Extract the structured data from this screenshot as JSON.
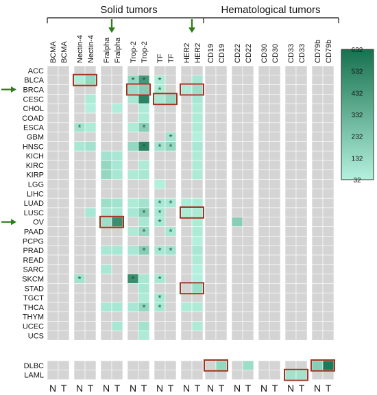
{
  "chart_data": {
    "type": "heatmap",
    "group_labels": [
      "Solid tumors",
      "Hematological tumors"
    ],
    "columns": [
      "BCMA",
      "BCMA",
      "Nectin-4",
      "Nectin-4",
      "Fralpha",
      "Fralpha",
      "Trop-2",
      "Trop-2",
      "TF",
      "TF",
      "HER2",
      "HER2",
      "CD19",
      "CD19",
      "CD22",
      "CD22",
      "CD30",
      "CD30",
      "CD33",
      "CD33",
      "CD79b",
      "CD79b"
    ],
    "nt_labels": [
      "N",
      "T",
      "N",
      "T",
      "N",
      "T",
      "N",
      "T",
      "N",
      "T",
      "N",
      "T",
      "N",
      "T",
      "N",
      "T",
      "N",
      "T",
      "N",
      "T",
      "N",
      "T"
    ],
    "rows_solid": [
      "ACC",
      "BLCA",
      "BRCA",
      "CESC",
      "CHOL",
      "COAD",
      "ESCA",
      "GBM",
      "HNSC",
      "KICH",
      "KIRC",
      "KIRP",
      "LGG",
      "LIHC",
      "LUAD",
      "LUSC",
      "OV",
      "PAAD",
      "PCPG",
      "PRAD",
      "READ",
      "SARC",
      "SKCM",
      "STAD",
      "TGCT",
      "THCA",
      "THYM",
      "UCEC",
      "UCS"
    ],
    "rows_heme": [
      "DLBC",
      "LAML"
    ],
    "colorbar": {
      "min": 32,
      "max": 632,
      "ticks": [
        632,
        532,
        432,
        332,
        232,
        132,
        32
      ],
      "low_color": "#b4f1de",
      "high_color": "#17714f"
    },
    "missing_color": "#d4d4d4",
    "values": [
      {
        "row": "BLCA",
        "col": 2,
        "v": 50
      },
      {
        "row": "BLCA",
        "col": 3,
        "v": 150
      },
      {
        "row": "BLCA",
        "col": 6,
        "v": 150
      },
      {
        "row": "BLCA",
        "col": 7,
        "v": 450
      },
      {
        "row": "BLCA",
        "col": 8,
        "v": 60
      },
      {
        "row": "BLCA",
        "col": 11,
        "v": 80
      },
      {
        "row": "BRCA",
        "col": 6,
        "v": 120
      },
      {
        "row": "BRCA",
        "col": 7,
        "v": 200
      },
      {
        "row": "BRCA",
        "col": 8,
        "v": 60
      },
      {
        "row": "BRCA",
        "col": 10,
        "v": 60
      },
      {
        "row": "BRCA",
        "col": 11,
        "v": 120
      },
      {
        "row": "CESC",
        "col": 3,
        "v": 60
      },
      {
        "row": "CESC",
        "col": 6,
        "v": 80
      },
      {
        "row": "CESC",
        "col": 7,
        "v": 550
      },
      {
        "row": "CESC",
        "col": 8,
        "v": 80
      },
      {
        "row": "CESC",
        "col": 9,
        "v": 150
      },
      {
        "row": "CESC",
        "col": 11,
        "v": 80
      },
      {
        "row": "CHOL",
        "col": 3,
        "v": 40
      },
      {
        "row": "CHOL",
        "col": 5,
        "v": 50
      },
      {
        "row": "CHOL",
        "col": 7,
        "v": 60
      },
      {
        "row": "CHOL",
        "col": 11,
        "v": 60
      },
      {
        "row": "COAD",
        "col": 7,
        "v": 60
      },
      {
        "row": "COAD",
        "col": 11,
        "v": 60
      },
      {
        "row": "ESCA",
        "col": 2,
        "v": 100
      },
      {
        "row": "ESCA",
        "col": 3,
        "v": 60
      },
      {
        "row": "ESCA",
        "col": 6,
        "v": 60
      },
      {
        "row": "ESCA",
        "col": 7,
        "v": 200
      },
      {
        "row": "ESCA",
        "col": 11,
        "v": 60
      },
      {
        "row": "GBM",
        "col": 9,
        "v": 100
      },
      {
        "row": "GBM",
        "col": 11,
        "v": 40
      },
      {
        "row": "HNSC",
        "col": 2,
        "v": 80
      },
      {
        "row": "HNSC",
        "col": 3,
        "v": 100
      },
      {
        "row": "HNSC",
        "col": 6,
        "v": 150
      },
      {
        "row": "HNSC",
        "col": 7,
        "v": 550
      },
      {
        "row": "HNSC",
        "col": 8,
        "v": 100
      },
      {
        "row": "HNSC",
        "col": 9,
        "v": 150
      },
      {
        "row": "HNSC",
        "col": 11,
        "v": 80
      },
      {
        "row": "KICH",
        "col": 4,
        "v": 100
      },
      {
        "row": "KICH",
        "col": 5,
        "v": 80
      },
      {
        "row": "KICH",
        "col": 11,
        "v": 60
      },
      {
        "row": "KIRC",
        "col": 4,
        "v": 150
      },
      {
        "row": "KIRC",
        "col": 5,
        "v": 80
      },
      {
        "row": "KIRC",
        "col": 7,
        "v": 60
      },
      {
        "row": "KIRC",
        "col": 11,
        "v": 60
      },
      {
        "row": "KIRP",
        "col": 4,
        "v": 150
      },
      {
        "row": "KIRP",
        "col": 5,
        "v": 80
      },
      {
        "row": "KIRP",
        "col": 6,
        "v": 60
      },
      {
        "row": "KIRP",
        "col": 7,
        "v": 80
      },
      {
        "row": "KIRP",
        "col": 11,
        "v": 60
      },
      {
        "row": "LGG",
        "col": 8,
        "v": 40
      },
      {
        "row": "LUAD",
        "col": 4,
        "v": 120
      },
      {
        "row": "LUAD",
        "col": 5,
        "v": 100
      },
      {
        "row": "LUAD",
        "col": 6,
        "v": 60
      },
      {
        "row": "LUAD",
        "col": 7,
        "v": 100
      },
      {
        "row": "LUAD",
        "col": 8,
        "v": 80
      },
      {
        "row": "LUAD",
        "col": 9,
        "v": 80
      },
      {
        "row": "LUAD",
        "col": 10,
        "v": 60
      },
      {
        "row": "LUAD",
        "col": 11,
        "v": 60
      },
      {
        "row": "LUSC",
        "col": 3,
        "v": 80
      },
      {
        "row": "LUSC",
        "col": 4,
        "v": 80
      },
      {
        "row": "LUSC",
        "col": 5,
        "v": 80
      },
      {
        "row": "LUSC",
        "col": 6,
        "v": 80
      },
      {
        "row": "LUSC",
        "col": 7,
        "v": 200
      },
      {
        "row": "LUSC",
        "col": 8,
        "v": 80
      },
      {
        "row": "LUSC",
        "col": 10,
        "v": 60
      },
      {
        "row": "LUSC",
        "col": 11,
        "v": 60
      },
      {
        "row": "OV",
        "col": 4,
        "v": 120
      },
      {
        "row": "OV",
        "col": 5,
        "v": 500
      },
      {
        "row": "OV",
        "col": 7,
        "v": 80
      },
      {
        "row": "OV",
        "col": 8,
        "v": 80
      },
      {
        "row": "OV",
        "col": 11,
        "v": 60
      },
      {
        "row": "OV",
        "col": 14,
        "v": 200
      },
      {
        "row": "PAAD",
        "col": 6,
        "v": 60
      },
      {
        "row": "PAAD",
        "col": 7,
        "v": 150
      },
      {
        "row": "PAAD",
        "col": 9,
        "v": 80
      },
      {
        "row": "PAAD",
        "col": 11,
        "v": 60
      },
      {
        "row": "PCPG",
        "col": 11,
        "v": 40
      },
      {
        "row": "PRAD",
        "col": 4,
        "v": 80
      },
      {
        "row": "PRAD",
        "col": 5,
        "v": 80
      },
      {
        "row": "PRAD",
        "col": 6,
        "v": 80
      },
      {
        "row": "PRAD",
        "col": 7,
        "v": 200
      },
      {
        "row": "PRAD",
        "col": 8,
        "v": 80
      },
      {
        "row": "PRAD",
        "col": 9,
        "v": 100
      },
      {
        "row": "PRAD",
        "col": 11,
        "v": 80
      },
      {
        "row": "READ",
        "col": 11,
        "v": 60
      },
      {
        "row": "SARC",
        "col": 4,
        "v": 80
      },
      {
        "row": "SARC",
        "col": 11,
        "v": 40
      },
      {
        "row": "SKCM",
        "col": 2,
        "v": 100
      },
      {
        "row": "SKCM",
        "col": 6,
        "v": 500
      },
      {
        "row": "SKCM",
        "col": 7,
        "v": 80
      },
      {
        "row": "SKCM",
        "col": 8,
        "v": 80
      },
      {
        "row": "SKCM",
        "col": 11,
        "v": 40
      },
      {
        "row": "STAD",
        "col": 7,
        "v": 80
      },
      {
        "row": "STAD",
        "col": 11,
        "v": 120
      },
      {
        "row": "TGCT",
        "col": 7,
        "v": 60
      },
      {
        "row": "TGCT",
        "col": 8,
        "v": 80
      },
      {
        "row": "THCA",
        "col": 4,
        "v": 80
      },
      {
        "row": "THCA",
        "col": 5,
        "v": 80
      },
      {
        "row": "THCA",
        "col": 6,
        "v": 80
      },
      {
        "row": "THCA",
        "col": 7,
        "v": 150
      },
      {
        "row": "THCA",
        "col": 8,
        "v": 80
      },
      {
        "row": "THCA",
        "col": 10,
        "v": 60
      },
      {
        "row": "THCA",
        "col": 11,
        "v": 60
      },
      {
        "row": "UCEC",
        "col": 5,
        "v": 80
      },
      {
        "row": "UCEC",
        "col": 7,
        "v": 100
      },
      {
        "row": "UCEC",
        "col": 11,
        "v": 60
      },
      {
        "row": "UCS",
        "col": 7,
        "v": 60
      },
      {
        "row": "DLBC",
        "col": 13,
        "v": 150
      },
      {
        "row": "DLBC",
        "col": 15,
        "v": 120
      },
      {
        "row": "DLBC",
        "col": 20,
        "v": 200
      },
      {
        "row": "DLBC",
        "col": 21,
        "v": 600
      },
      {
        "row": "LAML",
        "col": 18,
        "v": 100
      },
      {
        "row": "LAML",
        "col": 19,
        "v": 100
      }
    ],
    "stars": [
      {
        "row": "BLCA",
        "col": 6
      },
      {
        "row": "BLCA",
        "col": 7
      },
      {
        "row": "BLCA",
        "col": 8
      },
      {
        "row": "BRCA",
        "col": 8
      },
      {
        "row": "ESCA",
        "col": 2
      },
      {
        "row": "ESCA",
        "col": 7
      },
      {
        "row": "GBM",
        "col": 9
      },
      {
        "row": "HNSC",
        "col": 7
      },
      {
        "row": "HNSC",
        "col": 8
      },
      {
        "row": "HNSC",
        "col": 9
      },
      {
        "row": "LUAD",
        "col": 8
      },
      {
        "row": "LUAD",
        "col": 9
      },
      {
        "row": "LUSC",
        "col": 7
      },
      {
        "row": "LUSC",
        "col": 8
      },
      {
        "row": "OV",
        "col": 8
      },
      {
        "row": "PAAD",
        "col": 7
      },
      {
        "row": "PAAD",
        "col": 9
      },
      {
        "row": "PRAD",
        "col": 7
      },
      {
        "row": "PRAD",
        "col": 8
      },
      {
        "row": "PRAD",
        "col": 9
      },
      {
        "row": "SKCM",
        "col": 2
      },
      {
        "row": "SKCM",
        "col": 6
      },
      {
        "row": "SKCM",
        "col": 8
      },
      {
        "row": "TGCT",
        "col": 8
      },
      {
        "row": "THCA",
        "col": 7
      },
      {
        "row": "THCA",
        "col": 8
      }
    ],
    "highlight_boxes": [
      {
        "row": "BLCA",
        "col_start": 2,
        "col_end": 3
      },
      {
        "row": "BRCA",
        "col_start": 6,
        "col_end": 7
      },
      {
        "row": "BRCA",
        "col_start": 10,
        "col_end": 11
      },
      {
        "row": "CESC",
        "col_start": 8,
        "col_end": 9
      },
      {
        "row": "LUSC",
        "col_start": 10,
        "col_end": 11
      },
      {
        "row": "OV",
        "col_start": 4,
        "col_end": 5
      },
      {
        "row": "STAD",
        "col_start": 10,
        "col_end": 11
      },
      {
        "row": "DLBC",
        "col_start": 12,
        "col_end": 13
      },
      {
        "row": "DLBC",
        "col_start": 20,
        "col_end": 21
      },
      {
        "row": "LAML",
        "col_start": 18,
        "col_end": 19
      }
    ],
    "row_arrows": [
      "BRCA",
      "OV"
    ],
    "column_arrows": [
      5,
      11
    ]
  }
}
